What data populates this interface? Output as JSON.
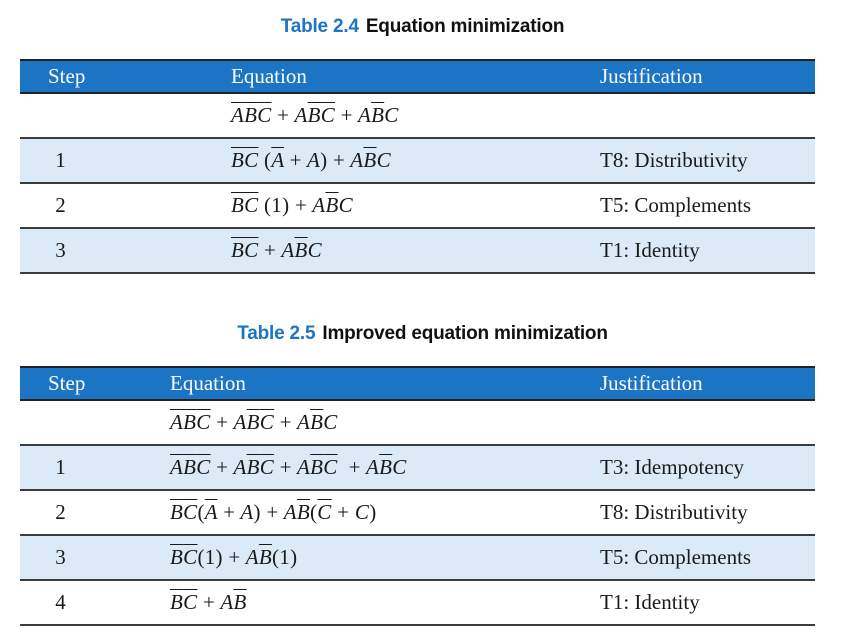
{
  "table1": {
    "caption_number": "Table 2.4",
    "caption_title": "Equation minimization",
    "headers": {
      "step": "Step",
      "equation": "Equation",
      "justification": "Justification"
    },
    "rows": [
      {
        "step": "",
        "equation": "A̅B̅C̅ + AB̅C̅ + AB̅C",
        "justification": ""
      },
      {
        "step": "1",
        "equation": "B̅C̅ (A̅ + A) + AB̅C",
        "justification": "T8: Distributivity"
      },
      {
        "step": "2",
        "equation": "B̅C̅ (1) + AB̅C",
        "justification": "T5: Complements"
      },
      {
        "step": "3",
        "equation": "B̅C̅ + AB̅C",
        "justification": "T1: Identity"
      }
    ]
  },
  "table2": {
    "caption_number": "Table 2.5",
    "caption_title": "Improved equation minimization",
    "headers": {
      "step": "Step",
      "equation": "Equation",
      "justification": "Justification"
    },
    "rows": [
      {
        "step": "",
        "equation": "A̅B̅C̅ + AB̅C̅ + AB̅C",
        "justification": ""
      },
      {
        "step": "1",
        "equation": "A̅B̅C̅ + AB̅C̅ + AB̅C̅ + AB̅C",
        "justification": "T3: Idempotency"
      },
      {
        "step": "2",
        "equation": "B̅C̅(A̅ + A) + AB̅(C̅ + C)",
        "justification": "T8: Distributivity"
      },
      {
        "step": "3",
        "equation": "B̅C̅(1) + AB̅(1)",
        "justification": "T5: Complements"
      },
      {
        "step": "4",
        "equation": "B̅C̅ + AB̅",
        "justification": "T1: Identity"
      }
    ]
  },
  "colors": {
    "accent": "#1b74c4",
    "row_shade": "#dce9f6",
    "header_text": "#ffffff"
  }
}
